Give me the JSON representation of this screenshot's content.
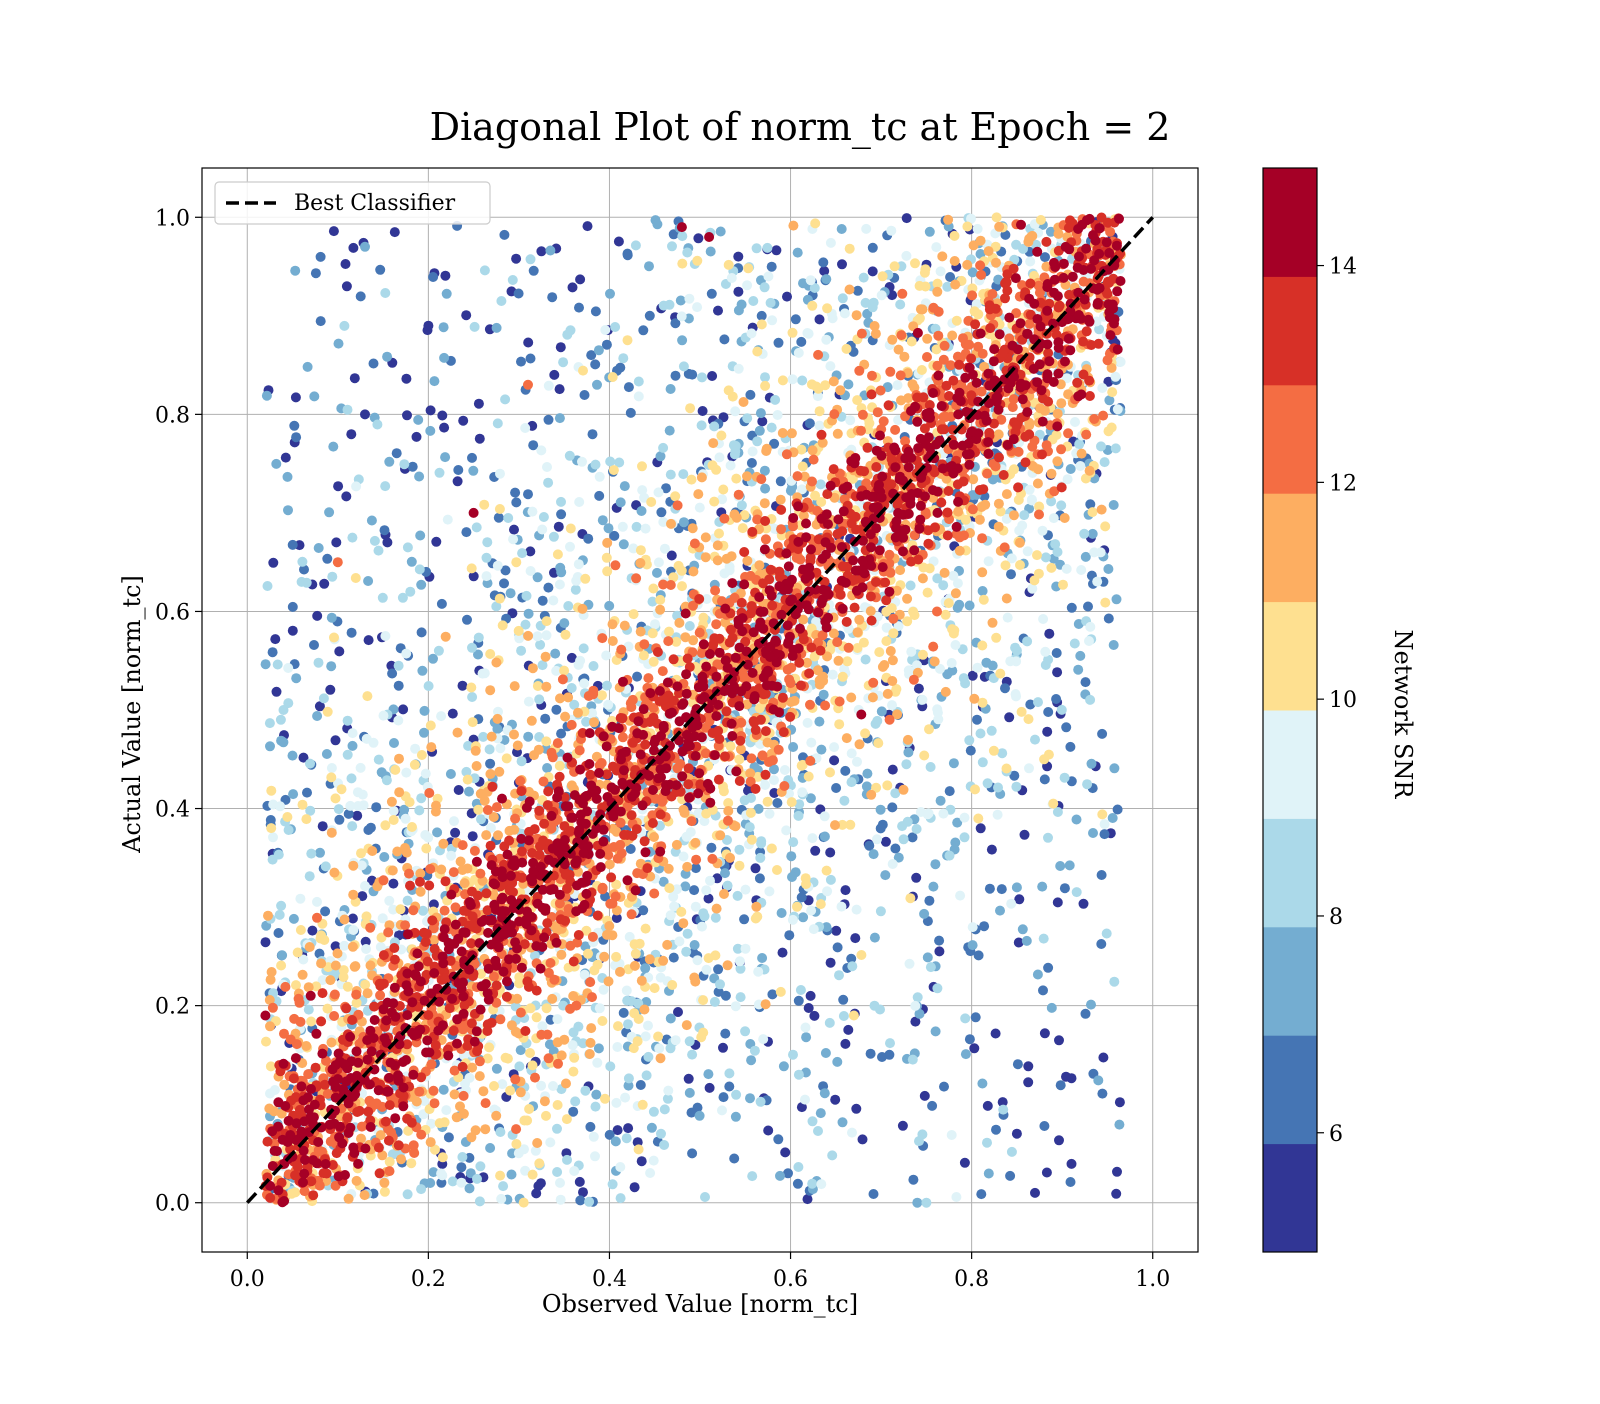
{
  "chart_data": {
    "type": "scatter",
    "title": "Diagonal Plot of norm_tc at Epoch = 2",
    "xlabel": "Observed Value [norm_tc]",
    "ylabel": "Actual Value [norm_tc]",
    "xlim": [
      -0.05,
      1.05
    ],
    "ylim": [
      -0.05,
      1.05
    ],
    "xticks": [
      "0.0",
      "0.2",
      "0.4",
      "0.6",
      "0.8",
      "1.0"
    ],
    "yticks": [
      "0.0",
      "0.2",
      "0.4",
      "0.6",
      "0.8",
      "1.0"
    ],
    "grid": true,
    "legend": {
      "location": "upper-left",
      "entries": [
        {
          "label": "Best Classifier",
          "style": "dashed",
          "color": "#000000"
        }
      ]
    },
    "reference_line": {
      "label": "Best Classifier",
      "x": [
        0.0,
        1.0
      ],
      "y": [
        0.0,
        1.0
      ]
    },
    "colorbar": {
      "label": "Network SNR",
      "range": [
        4.9,
        14.9
      ],
      "ticks": [
        "6",
        "8",
        "10",
        "12",
        "14"
      ],
      "colors": [
        "#313695",
        "#4575b4",
        "#74add1",
        "#abd9e9",
        "#e0f3f8",
        "#fee090",
        "#fdae61",
        "#f46d43",
        "#d73027",
        "#a50026"
      ]
    },
    "series": [
      {
        "color_by": "Network SNR",
        "snr_min": 4.9,
        "snr_max": 14.9,
        "n_points_approx": 9000
      }
    ],
    "scatter_sample": [
      [
        0.11,
        0.93,
        5.5
      ],
      [
        0.13,
        0.97,
        7.5
      ],
      [
        0.13,
        0.8,
        5.3
      ],
      [
        0.2,
        0.89,
        5.4
      ],
      [
        0.1,
        0.65,
        12.5
      ],
      [
        0.06,
        0.63,
        8.0
      ],
      [
        0.04,
        0.5,
        8.0
      ],
      [
        0.18,
        0.62,
        8.5
      ],
      [
        0.25,
        0.7,
        14.5
      ],
      [
        0.31,
        0.83,
        12.0
      ],
      [
        0.93,
        0.75,
        7.0
      ],
      [
        0.87,
        0.47,
        8.0
      ],
      [
        0.88,
        0.45,
        10.5
      ],
      [
        0.85,
        0.32,
        7.5
      ],
      [
        0.87,
        0.01,
        5.3
      ],
      [
        0.85,
        0.07,
        5.3
      ],
      [
        0.75,
        0.0,
        8.0
      ],
      [
        0.74,
        0.0,
        7.0
      ],
      [
        0.81,
        0.38,
        5.3
      ],
      [
        0.02,
        0.19,
        14.0
      ],
      [
        0.48,
        0.99,
        14.5
      ],
      [
        0.51,
        0.98,
        14.5
      ],
      [
        0.03,
        0.06,
        12.0
      ],
      [
        0.07,
        0.21,
        14.5
      ]
    ]
  }
}
